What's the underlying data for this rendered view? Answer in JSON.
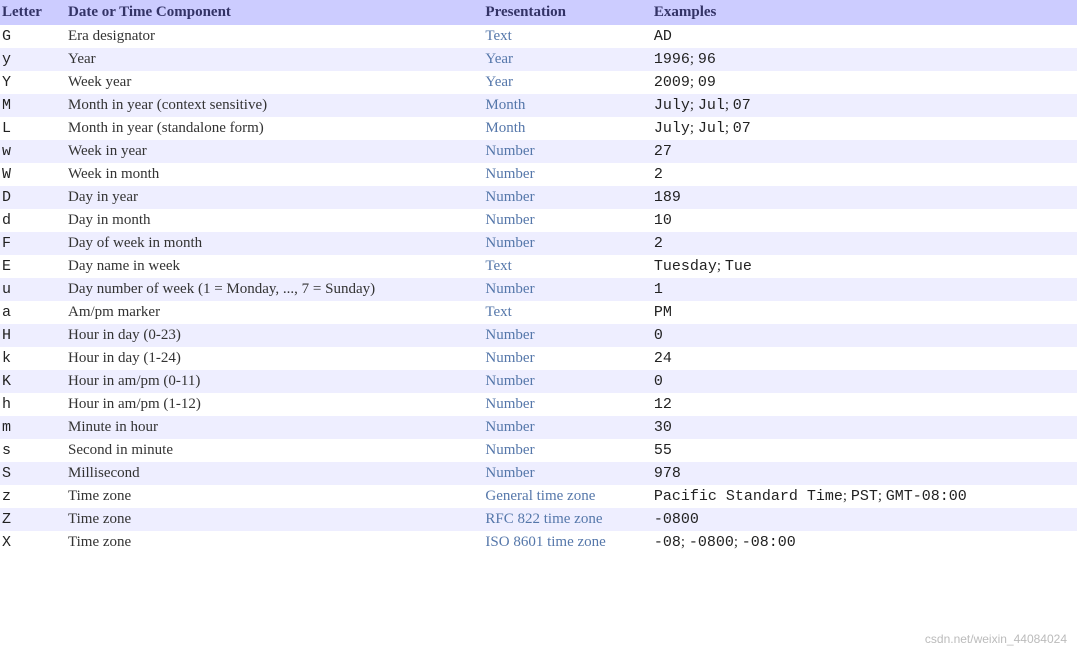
{
  "table": {
    "columns": [
      "Letter",
      "Date or Time Component",
      "Presentation",
      "Examples"
    ],
    "header_bg": "#ccccff",
    "header_color": "#333366",
    "row_bg_odd": "#eeeeff",
    "row_bg_even": "#ffffff",
    "link_color": "#5577aa",
    "rows": [
      {
        "letter": "G",
        "component": "Era designator",
        "presentation": "Text",
        "examples": [
          "AD"
        ]
      },
      {
        "letter": "y",
        "component": "Year",
        "presentation": "Year",
        "examples": [
          "1996",
          "96"
        ]
      },
      {
        "letter": "Y",
        "component": "Week year",
        "presentation": "Year",
        "examples": [
          "2009",
          "09"
        ]
      },
      {
        "letter": "M",
        "component": "Month in year (context sensitive)",
        "presentation": "Month",
        "examples": [
          "July",
          "Jul",
          "07"
        ]
      },
      {
        "letter": "L",
        "component": "Month in year (standalone form)",
        "presentation": "Month",
        "examples": [
          "July",
          "Jul",
          "07"
        ]
      },
      {
        "letter": "w",
        "component": "Week in year",
        "presentation": "Number",
        "examples": [
          "27"
        ]
      },
      {
        "letter": "W",
        "component": "Week in month",
        "presentation": "Number",
        "examples": [
          "2"
        ]
      },
      {
        "letter": "D",
        "component": "Day in year",
        "presentation": "Number",
        "examples": [
          "189"
        ]
      },
      {
        "letter": "d",
        "component": "Day in month",
        "presentation": "Number",
        "examples": [
          "10"
        ]
      },
      {
        "letter": "F",
        "component": "Day of week in month",
        "presentation": "Number",
        "examples": [
          "2"
        ]
      },
      {
        "letter": "E",
        "component": "Day name in week",
        "presentation": "Text",
        "examples": [
          "Tuesday",
          "Tue"
        ]
      },
      {
        "letter": "u",
        "component": "Day number of week (1 = Monday, ..., 7 = Sunday)",
        "presentation": "Number",
        "examples": [
          "1"
        ]
      },
      {
        "letter": "a",
        "component": "Am/pm marker",
        "presentation": "Text",
        "examples": [
          "PM"
        ]
      },
      {
        "letter": "H",
        "component": "Hour in day (0-23)",
        "presentation": "Number",
        "examples": [
          "0"
        ]
      },
      {
        "letter": "k",
        "component": "Hour in day (1-24)",
        "presentation": "Number",
        "examples": [
          "24"
        ]
      },
      {
        "letter": "K",
        "component": "Hour in am/pm (0-11)",
        "presentation": "Number",
        "examples": [
          "0"
        ]
      },
      {
        "letter": "h",
        "component": "Hour in am/pm (1-12)",
        "presentation": "Number",
        "examples": [
          "12"
        ]
      },
      {
        "letter": "m",
        "component": "Minute in hour",
        "presentation": "Number",
        "examples": [
          "30"
        ]
      },
      {
        "letter": "s",
        "component": "Second in minute",
        "presentation": "Number",
        "examples": [
          "55"
        ]
      },
      {
        "letter": "S",
        "component": "Millisecond",
        "presentation": "Number",
        "examples": [
          "978"
        ]
      },
      {
        "letter": "z",
        "component": "Time zone",
        "presentation": "General time zone",
        "examples": [
          "Pacific Standard Time",
          "PST",
          "GMT-08:00"
        ]
      },
      {
        "letter": "Z",
        "component": "Time zone",
        "presentation": "RFC 822 time zone",
        "examples": [
          "-0800"
        ]
      },
      {
        "letter": "X",
        "component": "Time zone",
        "presentation": "ISO 8601 time zone",
        "examples": [
          "-08",
          "-0800",
          "-08:00"
        ]
      }
    ]
  },
  "watermark": "csdn.net/weixin_44084024"
}
